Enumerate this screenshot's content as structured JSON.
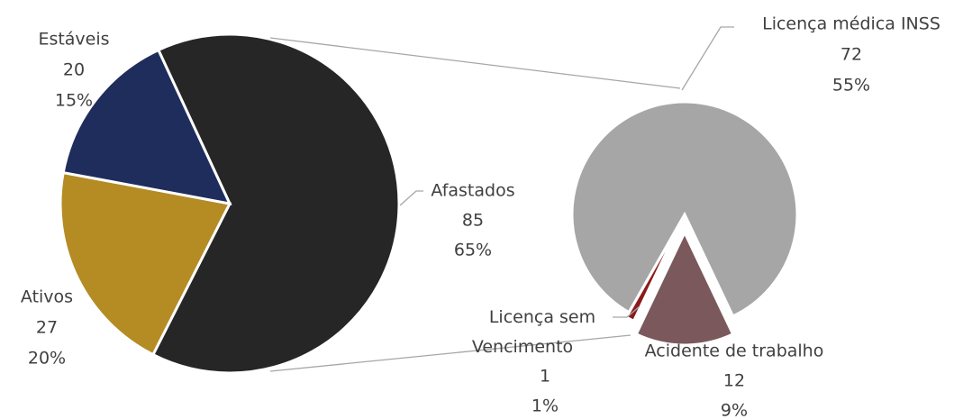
{
  "chart_data": [
    {
      "type": "pie",
      "categories": [
        "Estáveis",
        "Ativos",
        "Afastados"
      ],
      "values": [
        20,
        27,
        85
      ],
      "percents": [
        15,
        20,
        65
      ],
      "percent_labels": [
        "15%",
        "20%",
        "65%"
      ],
      "colors": [
        "#1f2d5c",
        "#b58b24",
        "#262626"
      ]
    },
    {
      "type": "pie",
      "categories": [
        "Licença médica INSS",
        "Licença sem Vencimento",
        "Acidente de trabalho"
      ],
      "values": [
        72,
        1,
        12
      ],
      "percents": [
        55,
        1,
        9
      ],
      "percent_labels": [
        "55%",
        "1%",
        "9%"
      ],
      "colors": [
        "#a6a6a6",
        "#8b1a1a",
        "#7a585c"
      ]
    }
  ]
}
